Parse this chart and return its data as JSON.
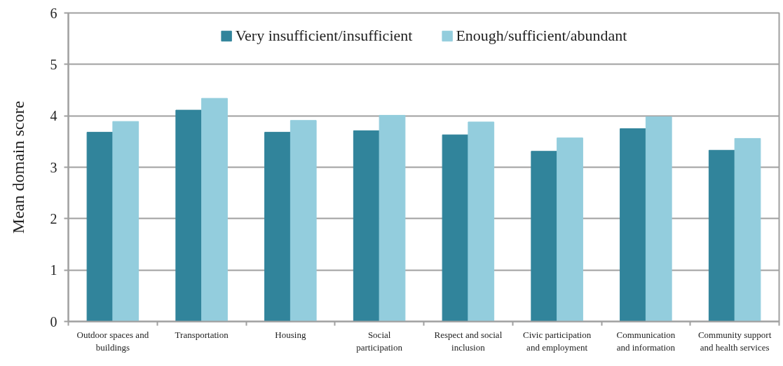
{
  "chart_data": {
    "type": "bar",
    "ylabel": "Mean domain score",
    "categories": [
      "Outdoor spaces and buildings",
      "Transportation",
      "Housing",
      "Social participation",
      "Respect and social inclusion",
      "Civic participation and employment",
      "Communication and information",
      "Community support and health services"
    ],
    "series": [
      {
        "name": "Very insufficient/insufficient",
        "color": "#31849b",
        "values": [
          3.68,
          4.11,
          3.68,
          3.71,
          3.63,
          3.31,
          3.75,
          3.33
        ]
      },
      {
        "name": "Enough/sufficient/abundant",
        "color": "#93cddd",
        "values": [
          3.89,
          4.34,
          3.91,
          4.01,
          3.88,
          3.57,
          3.98,
          3.56
        ]
      }
    ],
    "ylim": [
      0,
      6
    ],
    "yticks": [
      0,
      1,
      2,
      3,
      4,
      5,
      6
    ],
    "grid": "y",
    "legend": "top"
  }
}
